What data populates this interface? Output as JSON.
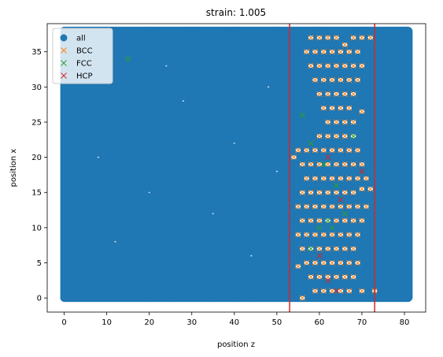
{
  "chart_data": {
    "type": "scatter",
    "title": "strain: 1.005",
    "xlabel": "position z",
    "ylabel": "position x",
    "xlim": [
      -4,
      85
    ],
    "ylim": [
      -2,
      39
    ],
    "xticks": [
      0,
      10,
      20,
      30,
      40,
      50,
      60,
      70,
      80
    ],
    "yticks": [
      0,
      5,
      10,
      15,
      20,
      25,
      30,
      35
    ],
    "legend_position": "top-left",
    "legend": [
      "all",
      "BCC",
      "FCC",
      "HCP"
    ],
    "grid": false,
    "vertical_lines": [
      {
        "x": 53,
        "color": "#d62728"
      },
      {
        "x": 73,
        "color": "#d62728"
      }
    ],
    "series": [
      {
        "name": "all",
        "marker": "circle",
        "color": "#1f77b4",
        "description": "dense cloud of atoms filling z 0-81, x 0-38",
        "points": [
          [
            0,
            0
          ],
          [
            5,
            0
          ],
          [
            10,
            0
          ],
          [
            15,
            0
          ],
          [
            20,
            0
          ],
          [
            25,
            0
          ],
          [
            30,
            0
          ],
          [
            35,
            0
          ],
          [
            40,
            0
          ],
          [
            45,
            0
          ],
          [
            50,
            0
          ],
          [
            55,
            0
          ],
          [
            60,
            0
          ],
          [
            65,
            0
          ],
          [
            70,
            0
          ],
          [
            75,
            0
          ],
          [
            80,
            0
          ],
          [
            0,
            38
          ],
          [
            10,
            38
          ],
          [
            20,
            38
          ],
          [
            30,
            38
          ],
          [
            40,
            38
          ],
          [
            50,
            38
          ],
          [
            60,
            38
          ],
          [
            70,
            38
          ],
          [
            80,
            38
          ],
          [
            60,
            12
          ],
          [
            65,
            20
          ],
          [
            70,
            30
          ],
          [
            62,
            5
          ],
          [
            68,
            35
          ]
        ]
      },
      {
        "name": "BCC",
        "marker": "x",
        "color": "#ff7f0e",
        "points": [
          [
            58,
            37
          ],
          [
            60,
            37
          ],
          [
            62,
            37
          ],
          [
            64,
            37
          ],
          [
            66,
            36
          ],
          [
            68,
            37
          ],
          [
            70,
            37
          ],
          [
            72,
            37
          ],
          [
            57,
            35
          ],
          [
            59,
            35
          ],
          [
            61,
            35
          ],
          [
            63,
            35
          ],
          [
            65,
            35
          ],
          [
            67,
            35
          ],
          [
            69,
            35
          ],
          [
            58,
            33
          ],
          [
            60,
            33
          ],
          [
            62,
            33
          ],
          [
            64,
            33
          ],
          [
            66,
            33
          ],
          [
            68,
            33
          ],
          [
            70,
            33
          ],
          [
            59,
            31
          ],
          [
            61,
            31
          ],
          [
            63,
            31
          ],
          [
            65,
            31
          ],
          [
            67,
            31
          ],
          [
            69,
            31
          ],
          [
            60,
            29
          ],
          [
            62,
            29
          ],
          [
            64,
            29
          ],
          [
            66,
            29
          ],
          [
            68,
            29
          ],
          [
            61,
            27
          ],
          [
            63,
            27
          ],
          [
            65,
            27
          ],
          [
            67,
            27
          ],
          [
            70,
            26.5
          ],
          [
            62,
            25
          ],
          [
            64,
            25
          ],
          [
            66,
            25
          ],
          [
            68,
            25
          ],
          [
            60,
            23
          ],
          [
            62,
            23
          ],
          [
            64,
            23
          ],
          [
            66,
            23
          ],
          [
            68,
            23
          ],
          [
            55,
            21
          ],
          [
            57,
            21
          ],
          [
            59,
            21
          ],
          [
            61,
            21
          ],
          [
            63,
            21
          ],
          [
            65,
            21
          ],
          [
            67,
            21
          ],
          [
            69,
            21
          ],
          [
            54,
            20
          ],
          [
            56,
            19
          ],
          [
            58,
            19
          ],
          [
            60,
            19
          ],
          [
            62,
            19
          ],
          [
            64,
            19
          ],
          [
            66,
            19
          ],
          [
            68,
            19
          ],
          [
            70,
            19
          ],
          [
            57,
            17
          ],
          [
            59,
            17
          ],
          [
            61,
            17
          ],
          [
            63,
            17
          ],
          [
            65,
            17
          ],
          [
            67,
            17
          ],
          [
            69,
            17
          ],
          [
            71,
            17
          ],
          [
            56,
            15
          ],
          [
            58,
            15
          ],
          [
            60,
            15
          ],
          [
            62,
            15
          ],
          [
            64,
            15
          ],
          [
            66,
            15
          ],
          [
            68,
            15
          ],
          [
            70,
            15.5
          ],
          [
            72,
            15.5
          ],
          [
            55,
            13
          ],
          [
            57,
            13
          ],
          [
            59,
            13
          ],
          [
            61,
            13
          ],
          [
            63,
            13
          ],
          [
            65,
            13
          ],
          [
            67,
            13
          ],
          [
            69,
            13
          ],
          [
            71,
            13
          ],
          [
            56,
            11
          ],
          [
            58,
            11
          ],
          [
            60,
            11
          ],
          [
            62,
            11
          ],
          [
            64,
            11
          ],
          [
            66,
            11
          ],
          [
            68,
            11
          ],
          [
            70,
            11
          ],
          [
            55,
            9
          ],
          [
            57,
            9
          ],
          [
            59,
            9
          ],
          [
            61,
            9
          ],
          [
            63,
            9
          ],
          [
            65,
            9
          ],
          [
            67,
            9
          ],
          [
            69,
            9
          ],
          [
            56,
            7
          ],
          [
            58,
            7
          ],
          [
            60,
            7
          ],
          [
            62,
            7
          ],
          [
            64,
            7
          ],
          [
            66,
            7
          ],
          [
            68,
            7
          ],
          [
            55,
            4.5
          ],
          [
            57,
            5
          ],
          [
            59,
            5
          ],
          [
            61,
            5
          ],
          [
            63,
            5
          ],
          [
            65,
            5
          ],
          [
            67,
            5
          ],
          [
            69,
            5
          ],
          [
            58,
            3
          ],
          [
            60,
            3
          ],
          [
            62,
            3
          ],
          [
            64,
            3
          ],
          [
            66,
            3
          ],
          [
            68,
            3
          ],
          [
            56,
            0
          ],
          [
            59,
            1
          ],
          [
            61,
            1
          ],
          [
            63,
            1
          ],
          [
            65,
            1
          ],
          [
            67,
            1
          ],
          [
            70,
            1
          ],
          [
            73,
            1
          ]
        ]
      },
      {
        "name": "FCC",
        "marker": "x",
        "color": "#2ca02c",
        "points": [
          [
            15,
            34
          ],
          [
            56,
            26
          ],
          [
            58,
            22
          ],
          [
            61,
            19
          ],
          [
            64,
            16
          ],
          [
            66,
            12
          ],
          [
            60,
            10
          ],
          [
            63,
            10
          ],
          [
            68,
            23
          ],
          [
            62,
            11
          ],
          [
            58,
            7
          ]
        ]
      },
      {
        "name": "HCP",
        "marker": "x",
        "color": "#d62728",
        "points": [
          [
            62,
            20
          ],
          [
            65,
            14
          ],
          [
            70,
            18
          ],
          [
            60,
            6
          ],
          [
            62,
            2.5
          ],
          [
            64,
            1
          ]
        ]
      }
    ]
  }
}
